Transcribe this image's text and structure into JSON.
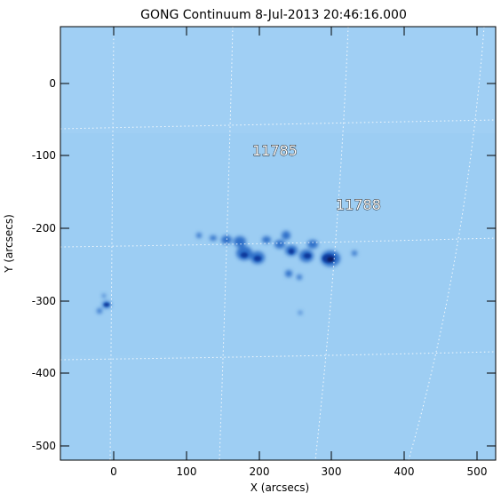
{
  "title": "GONG Continuum   8-Jul-2013 20:46:16.000",
  "axes": {
    "xlabel": "X (arcsecs)",
    "ylabel": "Y (arcsecs)",
    "xlim": [
      -73,
      527
    ],
    "ylim": [
      -522,
      78
    ],
    "x_ticks": [
      "0",
      "100",
      "200",
      "300",
      "400",
      "500"
    ],
    "y_ticks": [
      "0",
      "-100",
      "-200",
      "-300",
      "-400",
      "-500"
    ]
  },
  "image": {
    "background_color": "#9ccdf3",
    "spot_color": "#0b3a9e",
    "grid": "dotted white heliographic grid"
  },
  "regions": [
    {
      "label": "11785",
      "x": 285,
      "y": -95
    },
    {
      "label": "11788",
      "x": 310,
      "y": -170
    }
  ]
}
